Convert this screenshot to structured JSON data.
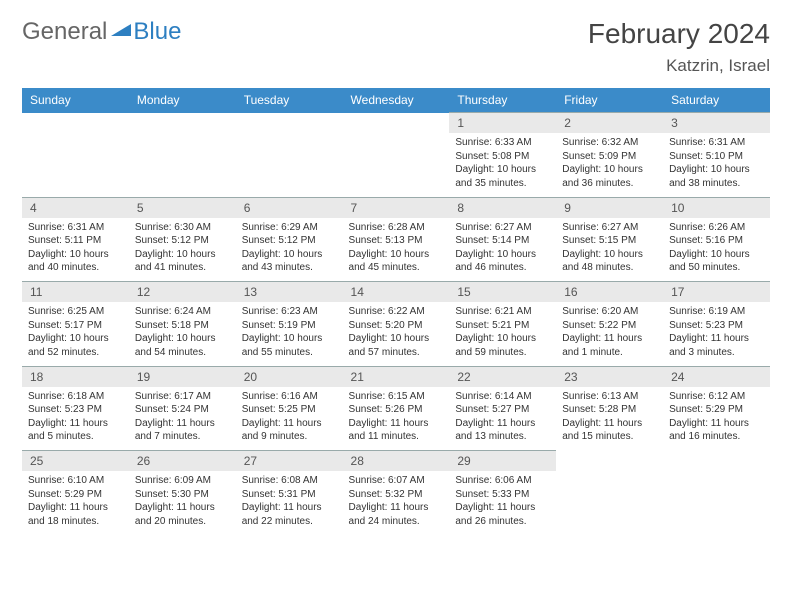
{
  "logo": {
    "text1": "General",
    "text2": "Blue",
    "shape_color": "#2d7fc1"
  },
  "title": "February 2024",
  "location": "Katzrin, Israel",
  "header_bg": "#3b8bc9",
  "daynum_bg": "#e9e9e9",
  "days": [
    "Sunday",
    "Monday",
    "Tuesday",
    "Wednesday",
    "Thursday",
    "Friday",
    "Saturday"
  ],
  "weeks": [
    [
      null,
      null,
      null,
      null,
      {
        "n": "1",
        "sr": "Sunrise: 6:33 AM",
        "ss": "Sunset: 5:08 PM",
        "dl": "Daylight: 10 hours and 35 minutes."
      },
      {
        "n": "2",
        "sr": "Sunrise: 6:32 AM",
        "ss": "Sunset: 5:09 PM",
        "dl": "Daylight: 10 hours and 36 minutes."
      },
      {
        "n": "3",
        "sr": "Sunrise: 6:31 AM",
        "ss": "Sunset: 5:10 PM",
        "dl": "Daylight: 10 hours and 38 minutes."
      }
    ],
    [
      {
        "n": "4",
        "sr": "Sunrise: 6:31 AM",
        "ss": "Sunset: 5:11 PM",
        "dl": "Daylight: 10 hours and 40 minutes."
      },
      {
        "n": "5",
        "sr": "Sunrise: 6:30 AM",
        "ss": "Sunset: 5:12 PM",
        "dl": "Daylight: 10 hours and 41 minutes."
      },
      {
        "n": "6",
        "sr": "Sunrise: 6:29 AM",
        "ss": "Sunset: 5:12 PM",
        "dl": "Daylight: 10 hours and 43 minutes."
      },
      {
        "n": "7",
        "sr": "Sunrise: 6:28 AM",
        "ss": "Sunset: 5:13 PM",
        "dl": "Daylight: 10 hours and 45 minutes."
      },
      {
        "n": "8",
        "sr": "Sunrise: 6:27 AM",
        "ss": "Sunset: 5:14 PM",
        "dl": "Daylight: 10 hours and 46 minutes."
      },
      {
        "n": "9",
        "sr": "Sunrise: 6:27 AM",
        "ss": "Sunset: 5:15 PM",
        "dl": "Daylight: 10 hours and 48 minutes."
      },
      {
        "n": "10",
        "sr": "Sunrise: 6:26 AM",
        "ss": "Sunset: 5:16 PM",
        "dl": "Daylight: 10 hours and 50 minutes."
      }
    ],
    [
      {
        "n": "11",
        "sr": "Sunrise: 6:25 AM",
        "ss": "Sunset: 5:17 PM",
        "dl": "Daylight: 10 hours and 52 minutes."
      },
      {
        "n": "12",
        "sr": "Sunrise: 6:24 AM",
        "ss": "Sunset: 5:18 PM",
        "dl": "Daylight: 10 hours and 54 minutes."
      },
      {
        "n": "13",
        "sr": "Sunrise: 6:23 AM",
        "ss": "Sunset: 5:19 PM",
        "dl": "Daylight: 10 hours and 55 minutes."
      },
      {
        "n": "14",
        "sr": "Sunrise: 6:22 AM",
        "ss": "Sunset: 5:20 PM",
        "dl": "Daylight: 10 hours and 57 minutes."
      },
      {
        "n": "15",
        "sr": "Sunrise: 6:21 AM",
        "ss": "Sunset: 5:21 PM",
        "dl": "Daylight: 10 hours and 59 minutes."
      },
      {
        "n": "16",
        "sr": "Sunrise: 6:20 AM",
        "ss": "Sunset: 5:22 PM",
        "dl": "Daylight: 11 hours and 1 minute."
      },
      {
        "n": "17",
        "sr": "Sunrise: 6:19 AM",
        "ss": "Sunset: 5:23 PM",
        "dl": "Daylight: 11 hours and 3 minutes."
      }
    ],
    [
      {
        "n": "18",
        "sr": "Sunrise: 6:18 AM",
        "ss": "Sunset: 5:23 PM",
        "dl": "Daylight: 11 hours and 5 minutes."
      },
      {
        "n": "19",
        "sr": "Sunrise: 6:17 AM",
        "ss": "Sunset: 5:24 PM",
        "dl": "Daylight: 11 hours and 7 minutes."
      },
      {
        "n": "20",
        "sr": "Sunrise: 6:16 AM",
        "ss": "Sunset: 5:25 PM",
        "dl": "Daylight: 11 hours and 9 minutes."
      },
      {
        "n": "21",
        "sr": "Sunrise: 6:15 AM",
        "ss": "Sunset: 5:26 PM",
        "dl": "Daylight: 11 hours and 11 minutes."
      },
      {
        "n": "22",
        "sr": "Sunrise: 6:14 AM",
        "ss": "Sunset: 5:27 PM",
        "dl": "Daylight: 11 hours and 13 minutes."
      },
      {
        "n": "23",
        "sr": "Sunrise: 6:13 AM",
        "ss": "Sunset: 5:28 PM",
        "dl": "Daylight: 11 hours and 15 minutes."
      },
      {
        "n": "24",
        "sr": "Sunrise: 6:12 AM",
        "ss": "Sunset: 5:29 PM",
        "dl": "Daylight: 11 hours and 16 minutes."
      }
    ],
    [
      {
        "n": "25",
        "sr": "Sunrise: 6:10 AM",
        "ss": "Sunset: 5:29 PM",
        "dl": "Daylight: 11 hours and 18 minutes."
      },
      {
        "n": "26",
        "sr": "Sunrise: 6:09 AM",
        "ss": "Sunset: 5:30 PM",
        "dl": "Daylight: 11 hours and 20 minutes."
      },
      {
        "n": "27",
        "sr": "Sunrise: 6:08 AM",
        "ss": "Sunset: 5:31 PM",
        "dl": "Daylight: 11 hours and 22 minutes."
      },
      {
        "n": "28",
        "sr": "Sunrise: 6:07 AM",
        "ss": "Sunset: 5:32 PM",
        "dl": "Daylight: 11 hours and 24 minutes."
      },
      {
        "n": "29",
        "sr": "Sunrise: 6:06 AM",
        "ss": "Sunset: 5:33 PM",
        "dl": "Daylight: 11 hours and 26 minutes."
      },
      null,
      null
    ]
  ]
}
